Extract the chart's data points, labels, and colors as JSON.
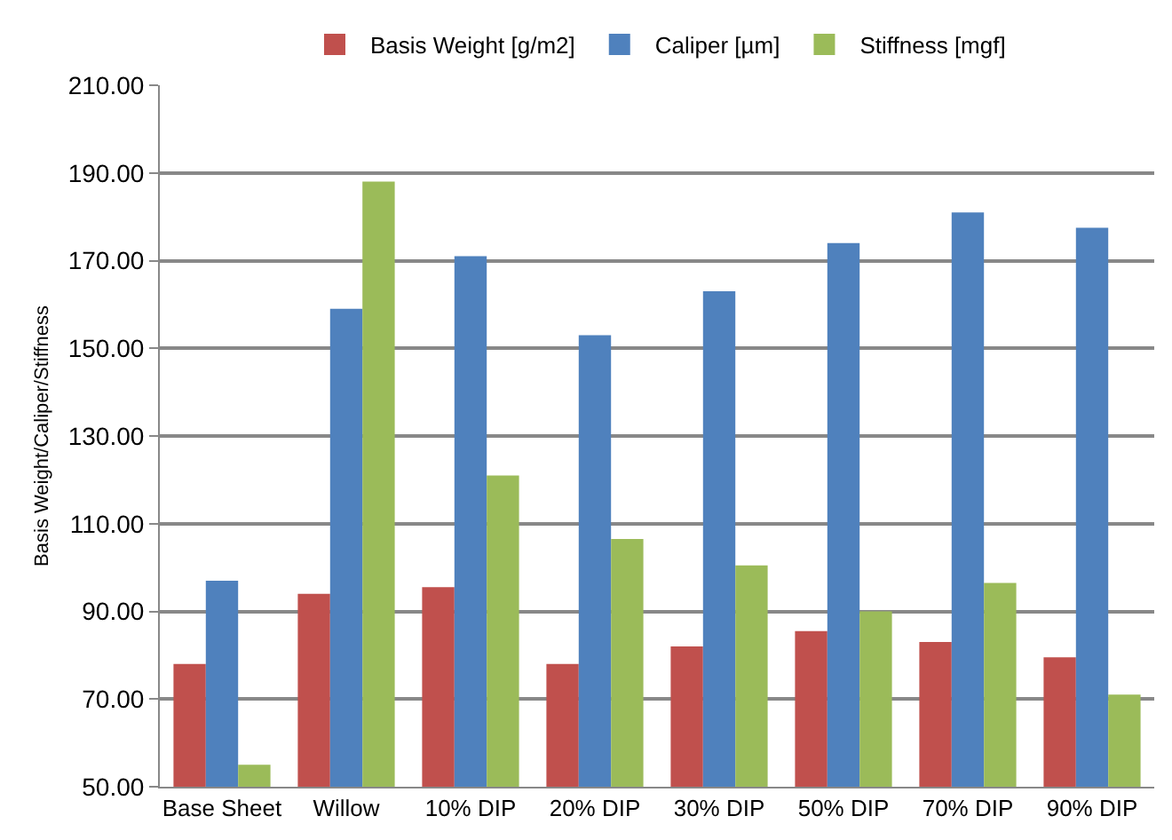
{
  "chart_data": {
    "type": "bar",
    "ylabel": "Basis Weight/Caliper/Stiffness",
    "categories": [
      "Base Sheet",
      "Willow",
      "10% DIP",
      "20% DIP",
      "30% DIP",
      "50% DIP",
      "70% DIP",
      "90% DIP"
    ],
    "series": [
      {
        "name": "Basis Weight [g/m2]",
        "color": "#c0504d",
        "values": [
          78,
          94,
          95.5,
          78,
          82,
          85.5,
          83,
          79.5
        ]
      },
      {
        "name": "Caliper [µm]",
        "color": "#4f81bd",
        "values": [
          97,
          159,
          171,
          153,
          163,
          174,
          181,
          177.5
        ]
      },
      {
        "name": "Stiffness [mgf]",
        "color": "#9bbb59",
        "values": [
          55,
          188,
          121,
          106.5,
          100.5,
          90,
          96.5,
          71
        ]
      }
    ],
    "ylim": [
      50,
      210
    ],
    "yticks": [
      {
        "value": 50,
        "label": "50.00"
      },
      {
        "value": 70,
        "label": "70.00"
      },
      {
        "value": 90,
        "label": "90.00"
      },
      {
        "value": 110,
        "label": "110.00"
      },
      {
        "value": 130,
        "label": "130.00"
      },
      {
        "value": 150,
        "label": "150.00"
      },
      {
        "value": 170,
        "label": "170.00"
      },
      {
        "value": 190,
        "label": "190.00"
      },
      {
        "value": 210,
        "label": "210.00"
      }
    ],
    "grid": "y",
    "legend": "top"
  }
}
